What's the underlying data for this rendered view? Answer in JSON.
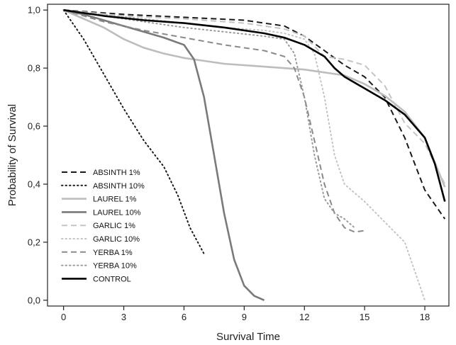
{
  "chart_data": {
    "type": "line",
    "xlabel": "Survival Time",
    "ylabel": "Probability of Survival",
    "xlim": [
      -0.8,
      19.2
    ],
    "ylim": [
      -0.02,
      1.02
    ],
    "xticks": [
      {
        "v": 0,
        "label": "0"
      },
      {
        "v": 3,
        "label": "3"
      },
      {
        "v": 6,
        "label": "6"
      },
      {
        "v": 9,
        "label": "9"
      },
      {
        "v": 12,
        "label": "12"
      },
      {
        "v": 15,
        "label": "15"
      },
      {
        "v": 18,
        "label": "18"
      }
    ],
    "yticks": [
      {
        "v": 0.0,
        "label": "0,0"
      },
      {
        "v": 0.2,
        "label": "0,2"
      },
      {
        "v": 0.4,
        "label": "0,4"
      },
      {
        "v": 0.6,
        "label": "0,6"
      },
      {
        "v": 0.8,
        "label": "0,8"
      },
      {
        "v": 1.0,
        "label": "1,0"
      }
    ],
    "grid": false,
    "legend_position": "bottom-left",
    "series": [
      {
        "name": "ABSINTH 1%",
        "color": "#1a1a1a",
        "dash": "dashed",
        "weight": "medium",
        "x": [
          0,
          3,
          6,
          9,
          11,
          12,
          13,
          14,
          15,
          16,
          17,
          18,
          19
        ],
        "y": [
          1.0,
          0.985,
          0.975,
          0.965,
          0.945,
          0.91,
          0.86,
          0.81,
          0.77,
          0.7,
          0.56,
          0.38,
          0.28
        ]
      },
      {
        "name": "ABSINTH 10%",
        "color": "#1a1a1a",
        "dash": "dotted",
        "weight": "medium",
        "x": [
          0,
          1,
          2,
          3,
          4,
          5,
          5.7,
          6.3,
          7
        ],
        "y": [
          1.0,
          0.9,
          0.78,
          0.66,
          0.55,
          0.46,
          0.36,
          0.25,
          0.16
        ]
      },
      {
        "name": "LAUREL 1%",
        "color": "#bdbdbd",
        "dash": "solid",
        "weight": "thick",
        "x": [
          0,
          1,
          2,
          3,
          4,
          5,
          6,
          7,
          8,
          10,
          12,
          14,
          15,
          16,
          17,
          18,
          19
        ],
        "y": [
          1.0,
          0.97,
          0.94,
          0.9,
          0.87,
          0.85,
          0.835,
          0.825,
          0.815,
          0.805,
          0.795,
          0.775,
          0.745,
          0.705,
          0.65,
          0.56,
          0.39
        ]
      },
      {
        "name": "LAUREL 10%",
        "color": "#7a7a7a",
        "dash": "solid",
        "weight": "thick",
        "x": [
          0,
          1,
          2,
          3,
          4,
          5,
          6,
          6.5,
          7,
          7.5,
          8,
          8.5,
          9,
          9.5,
          10
        ],
        "y": [
          1.0,
          0.985,
          0.965,
          0.945,
          0.925,
          0.905,
          0.88,
          0.83,
          0.7,
          0.5,
          0.3,
          0.14,
          0.05,
          0.015,
          0.0
        ]
      },
      {
        "name": "GARLIC 1%",
        "color": "#c4c4c4",
        "dash": "dashed",
        "weight": "medium",
        "x": [
          0,
          3,
          6,
          9,
          11,
          12,
          13,
          14,
          15,
          16,
          17,
          18,
          19
        ],
        "y": [
          1.0,
          0.98,
          0.97,
          0.955,
          0.935,
          0.91,
          0.84,
          0.83,
          0.81,
          0.74,
          0.61,
          0.54,
          0.4
        ]
      },
      {
        "name": "GARLIC 10%",
        "color": "#c4c4c4",
        "dash": "dotted",
        "weight": "medium",
        "x": [
          0,
          2,
          4,
          6,
          8,
          10,
          11,
          12,
          12.5,
          13,
          13.5,
          14,
          15,
          16,
          17,
          17.5,
          18
        ],
        "y": [
          1.0,
          0.985,
          0.97,
          0.955,
          0.94,
          0.93,
          0.92,
          0.9,
          0.85,
          0.7,
          0.5,
          0.4,
          0.34,
          0.27,
          0.2,
          0.1,
          0.0
        ]
      },
      {
        "name": "YERBA 1%",
        "color": "#8a8a8a",
        "dash": "dashed",
        "weight": "medium",
        "x": [
          0,
          2,
          4,
          6,
          8,
          10,
          11,
          11.5,
          12,
          12.5,
          13,
          13.5,
          14,
          14.5,
          15
        ],
        "y": [
          1.0,
          0.96,
          0.93,
          0.905,
          0.88,
          0.86,
          0.84,
          0.8,
          0.7,
          0.55,
          0.4,
          0.3,
          0.25,
          0.235,
          0.24
        ]
      },
      {
        "name": "YERBA 10%",
        "color": "#9a9a9a",
        "dash": "dotted",
        "weight": "medium",
        "x": [
          0,
          2,
          4,
          6,
          8,
          10,
          11,
          11.5,
          12,
          12.5,
          13,
          13.5,
          14,
          14.5
        ],
        "y": [
          1.0,
          0.98,
          0.96,
          0.94,
          0.925,
          0.91,
          0.9,
          0.85,
          0.7,
          0.5,
          0.35,
          0.3,
          0.28,
          0.25
        ]
      },
      {
        "name": "CONTROL",
        "color": "#000000",
        "dash": "solid",
        "weight": "thick",
        "x": [
          0,
          2,
          4,
          6,
          8,
          10,
          11,
          12,
          13,
          13.5,
          14,
          14.5,
          15,
          16,
          17,
          18,
          18.5,
          19
        ],
        "y": [
          1.0,
          0.98,
          0.965,
          0.955,
          0.94,
          0.92,
          0.905,
          0.88,
          0.84,
          0.8,
          0.77,
          0.75,
          0.73,
          0.69,
          0.64,
          0.56,
          0.47,
          0.34
        ]
      }
    ]
  }
}
